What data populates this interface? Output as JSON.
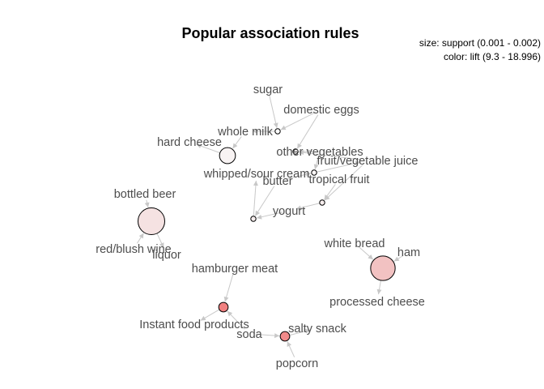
{
  "figure": {
    "title": "Popular association rules",
    "legend_size": "size: support (0.001 - 0.002)",
    "legend_color": "color: lift (9.3 - 18.996)"
  },
  "items": [
    {
      "id": "sugar",
      "label": "sugar"
    },
    {
      "id": "domestic_eggs",
      "label": "domestic eggs"
    },
    {
      "id": "whole_milk",
      "label": "whole milk"
    },
    {
      "id": "hard_cheese",
      "label": "hard cheese"
    },
    {
      "id": "other_vegetables",
      "label": "other vegetables"
    },
    {
      "id": "fruit_vegetable_juice",
      "label": "fruit/vegetable juice"
    },
    {
      "id": "whipped_sour_cream",
      "label": "whipped/sour cream"
    },
    {
      "id": "butter",
      "label": "butter"
    },
    {
      "id": "tropical_fruit",
      "label": "tropical fruit"
    },
    {
      "id": "bottled_beer",
      "label": "bottled beer"
    },
    {
      "id": "yogurt",
      "label": "yogurt"
    },
    {
      "id": "red_blush_wine",
      "label": "red/blush wine"
    },
    {
      "id": "liquor",
      "label": "liquor"
    },
    {
      "id": "white_bread",
      "label": "white bread"
    },
    {
      "id": "ham",
      "label": "ham"
    },
    {
      "id": "hamburger_meat",
      "label": "hamburger meat"
    },
    {
      "id": "processed_cheese",
      "label": "processed cheese"
    },
    {
      "id": "instant_food_products",
      "label": "Instant food products"
    },
    {
      "id": "soda",
      "label": "soda"
    },
    {
      "id": "salty_snack",
      "label": "salty snack"
    },
    {
      "id": "popcorn",
      "label": "popcorn"
    }
  ],
  "rules": [
    {
      "id": "r1",
      "lhs": [
        "sugar",
        "domestic_eggs"
      ],
      "rhs": "whole_milk",
      "support": 0.001,
      "lift": 9.3,
      "color": "#ffffff"
    },
    {
      "id": "r2",
      "lhs": [
        "whole_milk"
      ],
      "rhs": "hard_cheese",
      "support": 0.0015,
      "lift": 9.8,
      "color": "#f8f3f3"
    },
    {
      "id": "r3",
      "lhs": [
        "domestic_eggs",
        "fruit_vegetable_juice"
      ],
      "rhs": "other_vegetables",
      "support": 0.001,
      "lift": 9.5,
      "color": "#fbf7f7"
    },
    {
      "id": "r4",
      "lhs": [
        "other_vegetables",
        "butter"
      ],
      "rhs": "fruit_vegetable_juice",
      "support": 0.001,
      "lift": 9.6,
      "color": "#fbf7f7"
    },
    {
      "id": "r5",
      "lhs": [
        "fruit_vegetable_juice",
        "tropical_fruit"
      ],
      "rhs": "yogurt",
      "support": 0.001,
      "lift": 10.1,
      "color": "#f7eeee"
    },
    {
      "id": "r6",
      "lhs": [
        "butter",
        "yogurt"
      ],
      "rhs": "whipped_sour_cream",
      "support": 0.001,
      "lift": 10.2,
      "color": "#f7eeee"
    },
    {
      "id": "r7",
      "lhs": [
        "bottled_beer",
        "red_blush_wine"
      ],
      "rhs": "liquor",
      "support": 0.002,
      "lift": 11.2,
      "color": "#f5e2e2"
    },
    {
      "id": "r8",
      "lhs": [
        "white_bread",
        "ham"
      ],
      "rhs": "processed_cheese",
      "support": 0.0019,
      "lift": 12.5,
      "color": "#f2c2c2"
    },
    {
      "id": "r9",
      "lhs": [
        "hamburger_meat",
        "soda"
      ],
      "rhs": "instant_food_products",
      "support": 0.0012,
      "lift": 18.996,
      "color": "#f08080"
    },
    {
      "id": "r10",
      "lhs": [
        "soda",
        "popcorn"
      ],
      "rhs": "salty_snack",
      "support": 0.0012,
      "lift": 16.7,
      "color": "#f08a8a"
    }
  ]
}
